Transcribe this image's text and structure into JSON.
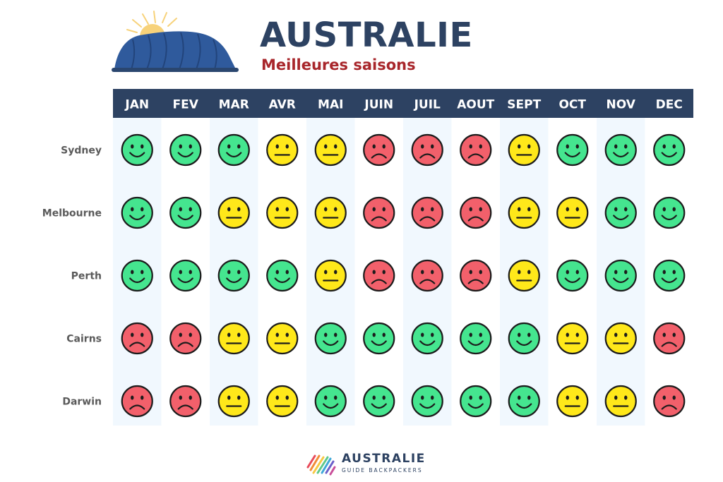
{
  "header": {
    "title": "AUSTRALIE",
    "subtitle": "Meilleures saisons"
  },
  "chart_data": {
    "type": "table",
    "columns": [
      "JAN",
      "FEV",
      "MAR",
      "AVR",
      "MAI",
      "JUIN",
      "JUIL",
      "AOUT",
      "SEPT",
      "OCT",
      "NOV",
      "DEC"
    ],
    "rows": [
      {
        "city": "Sydney",
        "ratings": [
          "good",
          "good",
          "good",
          "average",
          "average",
          "bad",
          "bad",
          "bad",
          "average",
          "good",
          "good",
          "good"
        ]
      },
      {
        "city": "Melbourne",
        "ratings": [
          "good",
          "good",
          "average",
          "average",
          "average",
          "bad",
          "bad",
          "bad",
          "average",
          "average",
          "good",
          "good"
        ]
      },
      {
        "city": "Perth",
        "ratings": [
          "good",
          "good",
          "good",
          "good",
          "average",
          "bad",
          "bad",
          "bad",
          "average",
          "good",
          "good",
          "good"
        ]
      },
      {
        "city": "Cairns",
        "ratings": [
          "bad",
          "bad",
          "average",
          "average",
          "good",
          "good",
          "good",
          "good",
          "good",
          "average",
          "average",
          "bad"
        ]
      },
      {
        "city": "Darwin",
        "ratings": [
          "bad",
          "bad",
          "average",
          "average",
          "good",
          "good",
          "good",
          "good",
          "good",
          "average",
          "average",
          "bad"
        ]
      }
    ],
    "rating_colors": {
      "good": "#45e58f",
      "average": "#ffe81a",
      "bad": "#f2606b"
    },
    "header_color": "#2d4262",
    "stripe_color": "#f1f8fe"
  },
  "footer": {
    "brand": "AUSTRALIE",
    "tagline": "GUIDE BACKPACKERS"
  }
}
